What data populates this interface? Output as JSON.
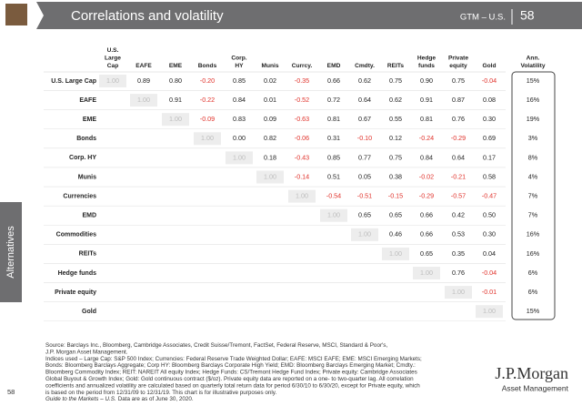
{
  "header": {
    "title": "Correlations and volatility",
    "section": "GTM – U.S.",
    "page": "58"
  },
  "sidebar": "Alternatives",
  "page_number": "58",
  "table": {
    "columns": [
      [
        "U.S.",
        "Large",
        "Cap"
      ],
      [
        "EAFE"
      ],
      [
        "EME"
      ],
      [
        "Bonds"
      ],
      [
        "Corp.",
        "HY"
      ],
      [
        "Munis"
      ],
      [
        "Currcy."
      ],
      [
        "EMD"
      ],
      [
        "Cmdty."
      ],
      [
        "REITs"
      ],
      [
        "Hedge",
        "funds"
      ],
      [
        "Private",
        "equity"
      ],
      [
        "Gold"
      ]
    ],
    "volatility_header": [
      "Ann.",
      "Volatility"
    ],
    "rows": [
      {
        "label": "U.S. Large Cap",
        "values": [
          "1.00",
          "0.89",
          "0.80",
          "-0.20",
          "0.85",
          "0.02",
          "-0.35",
          "0.66",
          "0.62",
          "0.75",
          "0.90",
          "0.75",
          "-0.04"
        ],
        "volatility": "15%"
      },
      {
        "label": "EAFE",
        "values": [
          "1.00",
          "0.91",
          "-0.22",
          "0.84",
          "0.01",
          "-0.52",
          "0.72",
          "0.64",
          "0.62",
          "0.91",
          "0.87",
          "0.08"
        ],
        "volatility": "16%"
      },
      {
        "label": "EME",
        "values": [
          "1.00",
          "-0.09",
          "0.83",
          "0.09",
          "-0.63",
          "0.81",
          "0.67",
          "0.55",
          "0.81",
          "0.76",
          "0.30"
        ],
        "volatility": "19%"
      },
      {
        "label": "Bonds",
        "values": [
          "1.00",
          "0.00",
          "0.82",
          "-0.06",
          "0.31",
          "-0.10",
          "0.12",
          "-0.24",
          "-0.29",
          "0.69"
        ],
        "volatility": "3%"
      },
      {
        "label": "Corp. HY",
        "values": [
          "1.00",
          "0.18",
          "-0.43",
          "0.85",
          "0.77",
          "0.75",
          "0.84",
          "0.64",
          "0.17"
        ],
        "volatility": "8%"
      },
      {
        "label": "Munis",
        "values": [
          "1.00",
          "-0.14",
          "0.51",
          "0.05",
          "0.38",
          "-0.02",
          "-0.21",
          "0.58"
        ],
        "volatility": "4%"
      },
      {
        "label": "Currencies",
        "values": [
          "1.00",
          "-0.54",
          "-0.51",
          "-0.15",
          "-0.29",
          "-0.57",
          "-0.47"
        ],
        "volatility": "7%"
      },
      {
        "label": "EMD",
        "values": [
          "1.00",
          "0.65",
          "0.65",
          "0.66",
          "0.42",
          "0.50"
        ],
        "volatility": "7%"
      },
      {
        "label": "Commodities",
        "values": [
          "1.00",
          "0.46",
          "0.66",
          "0.53",
          "0.30"
        ],
        "volatility": "16%"
      },
      {
        "label": "REITs",
        "values": [
          "1.00",
          "0.65",
          "0.35",
          "0.04"
        ],
        "volatility": "16%"
      },
      {
        "label": "Hedge funds",
        "values": [
          "1.00",
          "0.76",
          "-0.04"
        ],
        "volatility": "6%"
      },
      {
        "label": "Private equity",
        "values": [
          "1.00",
          "-0.01"
        ],
        "volatility": "6%"
      },
      {
        "label": "Gold",
        "values": [
          "1.00"
        ],
        "volatility": "15%"
      }
    ]
  },
  "footnote": {
    "lines": [
      "Source: Barclays Inc., Bloomberg, Cambridge Associates, Credit Suisse/Tremont, FactSet, Federal Reserve, MSCI, Standard & Poor's,",
      "J.P. Morgan Asset Management.",
      "Indices used – Large Cap: S&P 500 Index; Currencies: Federal Reserve Trade Weighted Dollar; EAFE: MSCI EAFE; EME: MSCI Emerging Markets;",
      "Bonds: Bloomberg Barclays Aggregate; Corp HY: Bloomberg Barclays Corporate High Yield; EMD: Bloomberg Barclays Emerging Market; Cmdty.:",
      "Bloomberg Commodity Index; REIT: NAREIT All equity Index; Hedge Funds: CS/Tremont Hedge Fund Index; Private equity: Cambridge Associates",
      "Global Buyout & Growth Index; Gold: Gold continuous contract ($/oz). Private equity data are reported on a one- to two-quarter lag. All correlation",
      "coefficients and annualized volatility are calculated based on quarterly total return data for period 6/30/10 to 6/30/20, except for Private equity, which",
      "is based on the period from 12/31/09 to 12/31/19. This chart is for illustrative purposes only."
    ],
    "guide_title": "Guide to the Markets – U.S.",
    "guide_date": "Data are as of June 30, 2020."
  },
  "logo": {
    "name": "J.P.Morgan",
    "subtitle": "Asset Management"
  }
}
